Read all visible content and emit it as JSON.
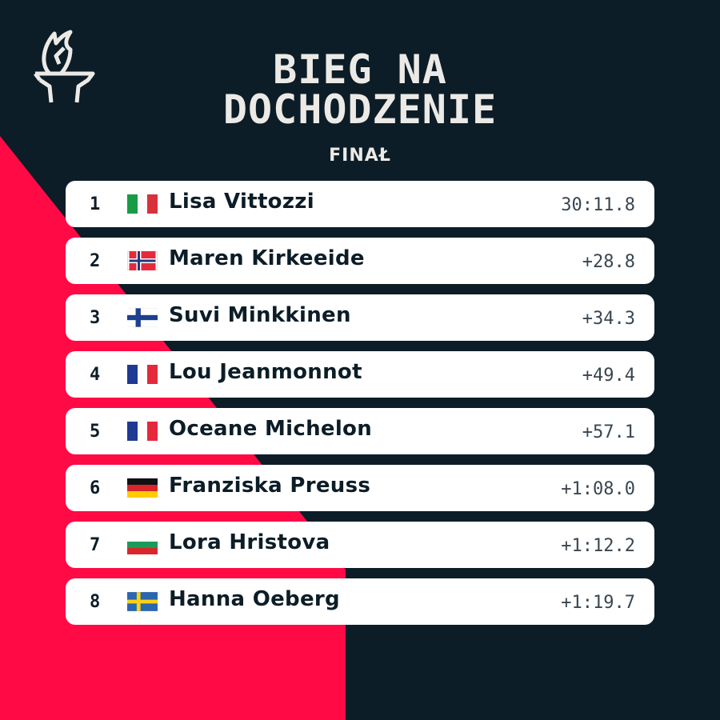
{
  "header": {
    "logo_icon": "torch-icon",
    "title_line1": "BIEG NA",
    "title_line2": "DOCHODZENIE",
    "subtitle": "FINAŁ"
  },
  "colors": {
    "background": "#0c1d27",
    "accent": "#ff0a45",
    "row": "#ffffff"
  },
  "results": [
    {
      "position": "1",
      "name": "Lisa Vittozzi",
      "time": "30:11.8",
      "flag": "italy"
    },
    {
      "position": "2",
      "name": "Maren Kirkeeide",
      "time": "+28.8",
      "flag": "norway"
    },
    {
      "position": "3",
      "name": "Suvi Minkkinen",
      "time": "+34.3",
      "flag": "finland"
    },
    {
      "position": "4",
      "name": "Lou Jeanmonnot",
      "time": "+49.4",
      "flag": "france"
    },
    {
      "position": "5",
      "name": "Oceane Michelon",
      "time": "+57.1",
      "flag": "france"
    },
    {
      "position": "6",
      "name": "Franziska Preuss",
      "time": "+1:08.0",
      "flag": "germany"
    },
    {
      "position": "7",
      "name": "Lora Hristova",
      "time": "+1:12.2",
      "flag": "bulgaria"
    },
    {
      "position": "8",
      "name": "Hanna Oeberg",
      "time": "+1:19.7",
      "flag": "sweden"
    }
  ]
}
